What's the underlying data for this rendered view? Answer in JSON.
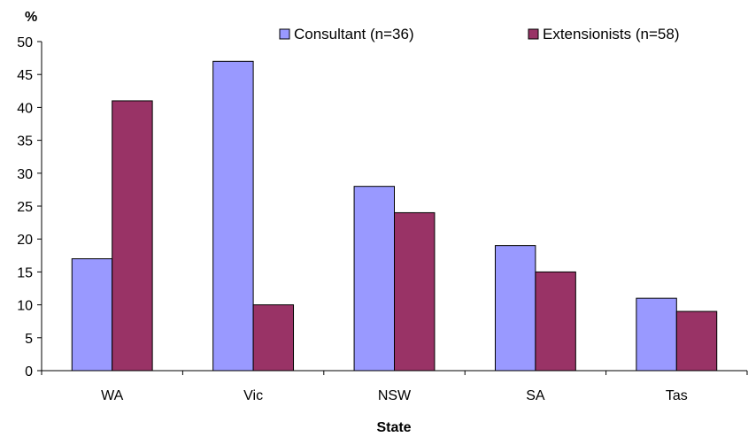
{
  "chart_data": {
    "type": "bar",
    "categories": [
      "WA",
      "Vic",
      "NSW",
      "SA",
      "Tas"
    ],
    "series": [
      {
        "name": "Consultant (n=36)",
        "color": "#9999ff",
        "values": [
          17,
          47,
          28,
          19,
          11
        ]
      },
      {
        "name": "Extensionists (n=58)",
        "color": "#993366",
        "values": [
          41,
          10,
          24,
          15,
          9
        ]
      }
    ],
    "title": "",
    "xlabel": "State",
    "ylabel": "%",
    "ylim": [
      0,
      50
    ],
    "yticks": [
      0,
      5,
      10,
      15,
      20,
      25,
      30,
      35,
      40,
      45,
      50
    ],
    "grid": false,
    "legend": "top-right"
  }
}
